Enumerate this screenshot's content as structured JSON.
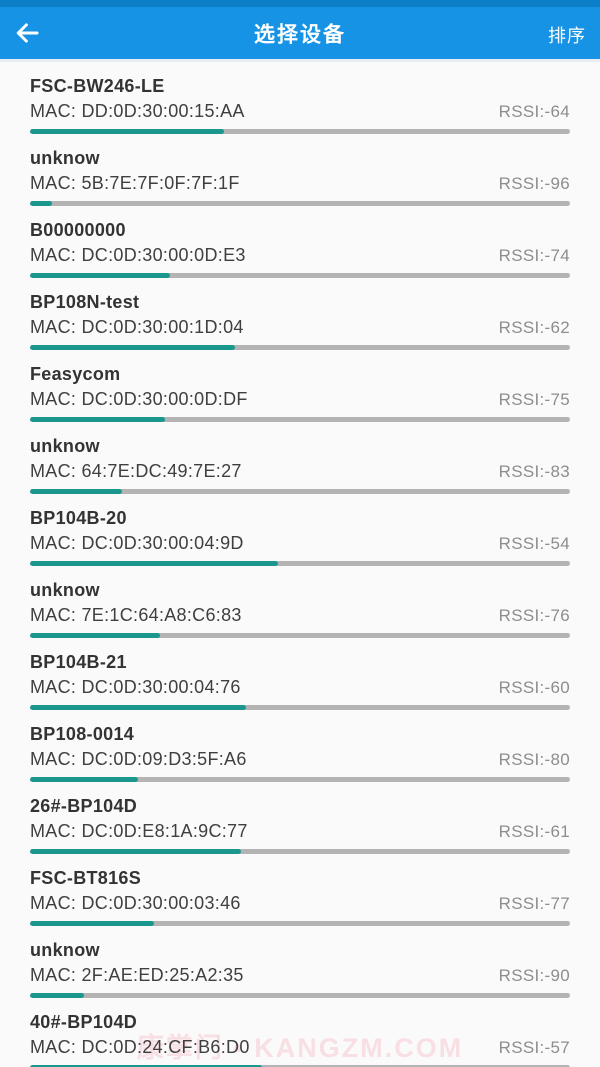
{
  "header": {
    "title": "选择设备",
    "back_icon": "arrow-left-icon",
    "sort_label": "排序"
  },
  "list": {
    "mac_prefix": "MAC: ",
    "rssi_prefix": "RSSI:"
  },
  "devices": [
    {
      "name": "FSC-BW246-LE",
      "mac": "DD:0D:30:00:15:AA",
      "rssi": -64
    },
    {
      "name": "unknow",
      "mac": "5B:7E:7F:0F:7F:1F",
      "rssi": -96
    },
    {
      "name": "B00000000",
      "mac": "DC:0D:30:00:0D:E3",
      "rssi": -74
    },
    {
      "name": "BP108N-test",
      "mac": "DC:0D:30:00:1D:04",
      "rssi": -62
    },
    {
      "name": "Feasycom",
      "mac": "DC:0D:30:00:0D:DF",
      "rssi": -75
    },
    {
      "name": "unknow",
      "mac": "64:7E:DC:49:7E:27",
      "rssi": -83
    },
    {
      "name": "BP104B-20",
      "mac": "DC:0D:30:00:04:9D",
      "rssi": -54
    },
    {
      "name": "unknow",
      "mac": "7E:1C:64:A8:C6:83",
      "rssi": -76
    },
    {
      "name": "BP104B-21",
      "mac": "DC:0D:30:00:04:76",
      "rssi": -60
    },
    {
      "name": "BP108-0014",
      "mac": "DC:0D:09:D3:5F:A6",
      "rssi": -80
    },
    {
      "name": "26#-BP104D",
      "mac": "DC:0D:E8:1A:9C:77",
      "rssi": -61
    },
    {
      "name": "FSC-BT816S",
      "mac": "DC:0D:30:00:03:46",
      "rssi": -77
    },
    {
      "name": "unknow",
      "mac": "2F:AE:ED:25:A2:35",
      "rssi": -90
    },
    {
      "name": "40#-BP104D",
      "mac": "DC:0D:24:CF:B6:D0",
      "rssi": -57
    }
  ],
  "watermark": {
    "text": "康掌门 • KANGZM.COM"
  },
  "colors": {
    "header_bg": "#1793e6",
    "statusbar_bg": "#0d7fc9",
    "bar_fill": "#1a988e",
    "bar_track": "#b4b4b4",
    "list_bg": "#fafafa",
    "watermark": "#f6c9d2"
  }
}
